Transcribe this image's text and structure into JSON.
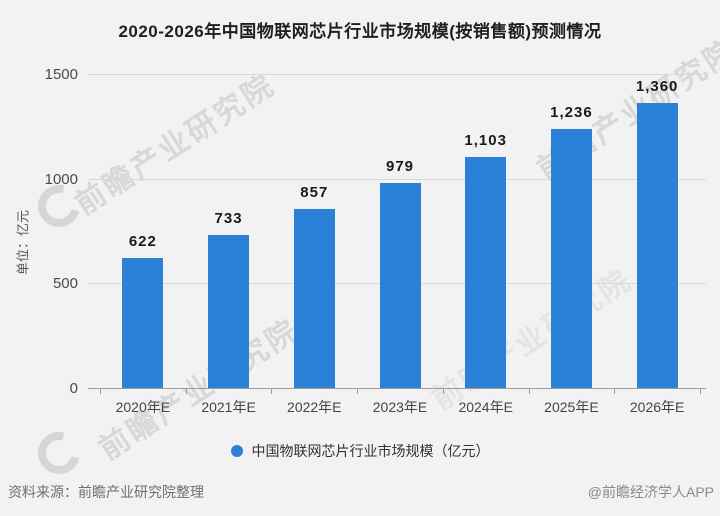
{
  "page": {
    "background": "#f2f2f2"
  },
  "header": {
    "title": "2020-2026年中国物联网芯片行业市场规模(按销售额)预测情况"
  },
  "chart_data": {
    "type": "bar",
    "title": "2020-2026年中国物联网芯片行业市场规模(按销售额)预测情况",
    "categories": [
      "2020年E",
      "2021年E",
      "2022年E",
      "2023年E",
      "2024年E",
      "2025年E",
      "2026年E"
    ],
    "values": [
      622,
      733,
      857,
      979,
      1103,
      1236,
      1360
    ],
    "value_labels": [
      "622",
      "733",
      "857",
      "979",
      "1,103",
      "1,236",
      "1,360"
    ],
    "xlabel": "",
    "ylabel": "单位：亿元",
    "ylim": [
      0,
      1500
    ],
    "yticks": [
      0,
      500,
      1000,
      1500
    ],
    "grid": true,
    "bar_color": "#2b81d7",
    "legend_position": "bottom"
  },
  "legend": {
    "label": "中国物联网芯片行业市场规模（亿元）",
    "marker_color": "#2b81d7"
  },
  "footer": {
    "source": "资料来源：前瞻产业研究院整理",
    "credit": "@前瞻经济学人APP"
  },
  "watermark": {
    "text": "前瞻产业研究院"
  }
}
